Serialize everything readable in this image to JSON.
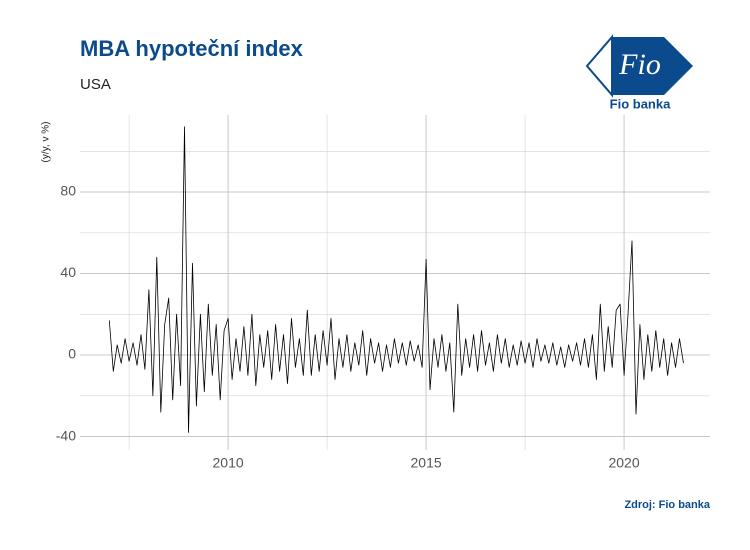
{
  "chart_data": {
    "type": "line",
    "title": "MBA hypoteční index",
    "subtitle": "USA",
    "ylabel": "(y/y, v %)",
    "source": "Zdroj: Fio banka",
    "logo": {
      "mark": "Fio",
      "name": "Fio banka"
    },
    "x": [
      2007.0,
      2007.1,
      2007.2,
      2007.3,
      2007.4,
      2007.5,
      2007.6,
      2007.7,
      2007.8,
      2007.9,
      2008.0,
      2008.1,
      2008.2,
      2008.3,
      2008.4,
      2008.5,
      2008.6,
      2008.7,
      2008.8,
      2008.9,
      2009.0,
      2009.1,
      2009.2,
      2009.3,
      2009.4,
      2009.5,
      2009.6,
      2009.7,
      2009.8,
      2009.9,
      2010.0,
      2010.1,
      2010.2,
      2010.3,
      2010.4,
      2010.5,
      2010.6,
      2010.7,
      2010.8,
      2010.9,
      2011.0,
      2011.1,
      2011.2,
      2011.3,
      2011.4,
      2011.5,
      2011.6,
      2011.7,
      2011.8,
      2011.9,
      2012.0,
      2012.1,
      2012.2,
      2012.3,
      2012.4,
      2012.5,
      2012.6,
      2012.7,
      2012.8,
      2012.9,
      2013.0,
      2013.1,
      2013.2,
      2013.3,
      2013.4,
      2013.5,
      2013.6,
      2013.7,
      2013.8,
      2013.9,
      2014.0,
      2014.1,
      2014.2,
      2014.3,
      2014.4,
      2014.5,
      2014.6,
      2014.7,
      2014.8,
      2014.9,
      2015.0,
      2015.1,
      2015.2,
      2015.3,
      2015.4,
      2015.5,
      2015.6,
      2015.7,
      2015.8,
      2015.9,
      2016.0,
      2016.1,
      2016.2,
      2016.3,
      2016.4,
      2016.5,
      2016.6,
      2016.7,
      2016.8,
      2016.9,
      2017.0,
      2017.1,
      2017.2,
      2017.3,
      2017.4,
      2017.5,
      2017.6,
      2017.7,
      2017.8,
      2017.9,
      2018.0,
      2018.1,
      2018.2,
      2018.3,
      2018.4,
      2018.5,
      2018.6,
      2018.7,
      2018.8,
      2018.9,
      2019.0,
      2019.1,
      2019.2,
      2019.3,
      2019.4,
      2019.5,
      2019.6,
      2019.7,
      2019.8,
      2019.9,
      2020.0,
      2020.1,
      2020.2,
      2020.3,
      2020.4,
      2020.5,
      2020.6,
      2020.7,
      2020.8,
      2020.9,
      2021.0,
      2021.1,
      2021.2,
      2021.3,
      2021.4,
      2021.5
    ],
    "series": [
      {
        "name": "MBA",
        "color": "#000000",
        "values": [
          17,
          -8,
          5,
          -4,
          8,
          -3,
          6,
          -5,
          10,
          -7,
          32,
          -20,
          48,
          -28,
          15,
          28,
          -22,
          20,
          -15,
          112,
          -38,
          45,
          -25,
          20,
          -18,
          25,
          -10,
          15,
          -22,
          12,
          18,
          -12,
          8,
          -8,
          14,
          -10,
          20,
          -15,
          10,
          -6,
          12,
          -12,
          15,
          -8,
          10,
          -14,
          18,
          -6,
          8,
          -10,
          22,
          -10,
          10,
          -8,
          12,
          -5,
          18,
          -12,
          8,
          -6,
          10,
          -8,
          6,
          -5,
          12,
          -10,
          8,
          -4,
          6,
          -8,
          5,
          -6,
          8,
          -4,
          6,
          -5,
          7,
          -3,
          5,
          -6,
          47,
          -17,
          8,
          -6,
          10,
          -8,
          6,
          -28,
          25,
          -10,
          8,
          -6,
          10,
          -8,
          12,
          -5,
          6,
          -8,
          10,
          -4,
          8,
          -6,
          5,
          -5,
          7,
          -4,
          6,
          -6,
          8,
          -3,
          5,
          -4,
          6,
          -5,
          4,
          -6,
          5,
          -3,
          6,
          -5,
          8,
          -6,
          10,
          -12,
          25,
          -8,
          14,
          -6,
          22,
          25,
          -10,
          20,
          56,
          -29,
          15,
          -12,
          10,
          -8,
          12,
          -6,
          8,
          -10,
          6,
          -6,
          8,
          -4
        ]
      }
    ],
    "xlim": [
      2006.26,
      2022.17
    ],
    "xticks": [
      2010,
      2015,
      2020
    ],
    "xminorticks": [
      2007.5,
      2012.5,
      2017.5
    ],
    "ylim": [
      -46.6,
      117.8
    ],
    "yticks": [
      -40,
      0,
      40,
      80
    ],
    "yminorticks": [
      -20,
      20,
      60,
      100
    ],
    "grid": true
  }
}
